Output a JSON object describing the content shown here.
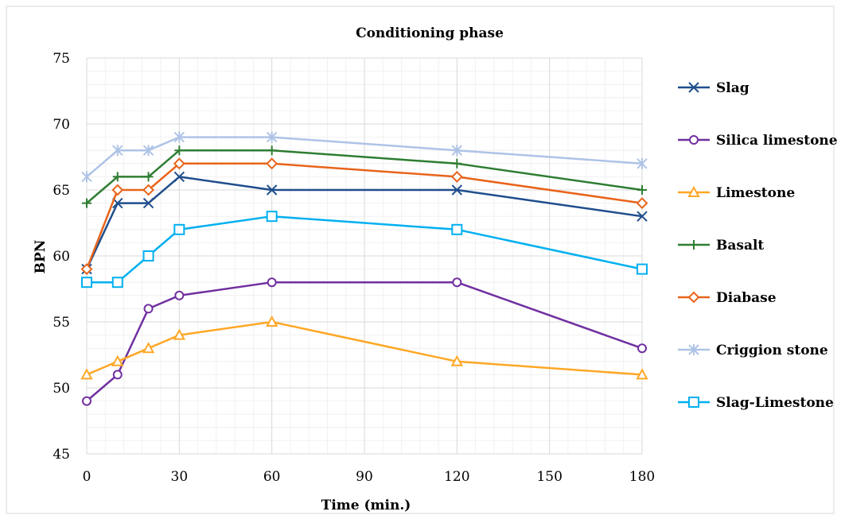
{
  "chart_data": {
    "type": "line",
    "title": "Conditioning phase",
    "xlabel": "Time (min.)",
    "ylabel": "BPN",
    "xlim": [
      0,
      180
    ],
    "ylim": [
      45,
      75
    ],
    "x_ticks": [
      0,
      30,
      60,
      90,
      120,
      150,
      180
    ],
    "y_ticks": [
      45,
      50,
      55,
      60,
      65,
      70,
      75
    ],
    "x": [
      0,
      10,
      20,
      30,
      60,
      120,
      180
    ],
    "grid": true,
    "minor_grid": true,
    "legend_position": "right",
    "series": [
      {
        "name": "Slag",
        "values": [
          59,
          64,
          64,
          66,
          65,
          65,
          63
        ],
        "color": "#1f4e8c",
        "marker": "x"
      },
      {
        "name": "Silica limestone",
        "values": [
          49,
          51,
          56,
          57,
          58,
          58,
          53
        ],
        "color": "#7030a0",
        "marker": "circle"
      },
      {
        "name": "Limestone",
        "values": [
          51,
          52,
          53,
          54,
          55,
          52,
          51
        ],
        "color": "#ffa726",
        "marker": "triangle"
      },
      {
        "name": "Basalt",
        "values": [
          64,
          66,
          66,
          68,
          68,
          67,
          65
        ],
        "color": "#2e7d32",
        "marker": "plus"
      },
      {
        "name": "Diabase",
        "values": [
          59,
          65,
          65,
          67,
          67,
          66,
          64
        ],
        "color": "#e8641b",
        "marker": "diamond"
      },
      {
        "name": "Criggion stone",
        "values": [
          66,
          68,
          68,
          69,
          69,
          68,
          67
        ],
        "color": "#aec3e6",
        "marker": "star"
      },
      {
        "name": "Slag-Limestone",
        "values": [
          58,
          58,
          60,
          62,
          63,
          62,
          59
        ],
        "color": "#00b0f0",
        "marker": "square"
      }
    ]
  }
}
